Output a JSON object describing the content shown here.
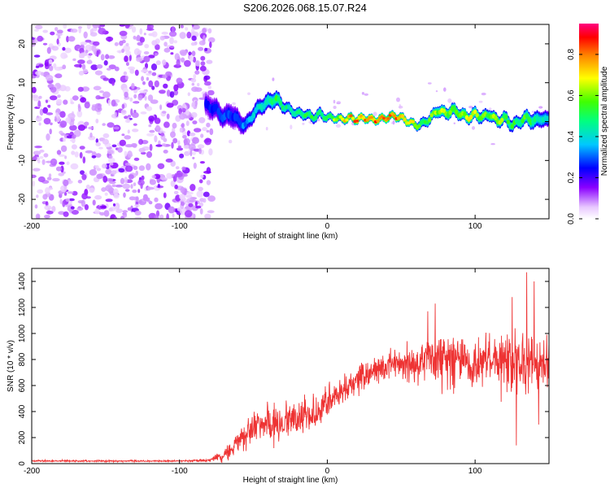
{
  "title": "S206.2026.068.15.07.R24",
  "chart_data": [
    {
      "type": "heatmap",
      "name": "spectrogram",
      "xlabel": "Height of straight line (km)",
      "ylabel": "Frequency (Hz)",
      "xlim": [
        -200,
        150
      ],
      "ylim": [
        -25,
        25
      ],
      "x_ticks": [
        -200,
        -100,
        0,
        100
      ],
      "x_tick_labels": [
        "-200",
        "-100",
        "0",
        "100"
      ],
      "y_ticks": [
        -20,
        -10,
        0,
        10,
        20
      ],
      "y_tick_labels": [
        "-20",
        "-10",
        "0",
        "10",
        "20"
      ],
      "colorbar": {
        "label": "Normalized spectral amplitude",
        "range": [
          0,
          0.95
        ],
        "ticks": [
          0.0,
          0.2,
          0.4,
          0.6,
          0.8
        ],
        "tick_labels": [
          "0.0",
          "0.2",
          "0.4",
          "0.6",
          "0.8"
        ]
      },
      "ridge": {
        "x": [
          -80,
          -75,
          -70,
          -65,
          -60,
          -55,
          -50,
          -45,
          -40,
          -35,
          -30,
          -25,
          -20,
          -15,
          -10,
          -5,
          0,
          5,
          10,
          15,
          20,
          25,
          30,
          35,
          40,
          45,
          50,
          55,
          60,
          65,
          70,
          75,
          80,
          85,
          90,
          95,
          100,
          105,
          110,
          115,
          120,
          125,
          130,
          135,
          140,
          145,
          150
        ],
        "freq": [
          4,
          3,
          1,
          2,
          0,
          -1,
          2,
          4,
          5,
          6,
          4,
          3,
          2,
          2,
          1,
          2,
          1,
          1,
          0.5,
          1,
          0.5,
          1,
          0.5,
          0.5,
          1,
          1.5,
          1,
          0,
          -1,
          -0.5,
          1,
          3,
          2,
          3,
          2,
          1,
          2,
          1,
          2,
          0,
          1,
          -1,
          0,
          1,
          0,
          1,
          0
        ],
        "amplitude": [
          0.25,
          0.3,
          0.3,
          0.3,
          0.3,
          0.35,
          0.4,
          0.45,
          0.5,
          0.55,
          0.5,
          0.5,
          0.55,
          0.55,
          0.55,
          0.5,
          0.6,
          0.65,
          0.7,
          0.8,
          0.85,
          0.8,
          0.9,
          0.85,
          0.8,
          0.85,
          0.8,
          0.75,
          0.7,
          0.55,
          0.6,
          0.65,
          0.65,
          0.65,
          0.65,
          0.7,
          0.65,
          0.6,
          0.6,
          0.65,
          0.6,
          0.55,
          0.55,
          0.6,
          0.5,
          0.45,
          0.4
        ],
        "halfwidth": [
          6,
          5,
          5,
          6,
          5,
          4,
          4,
          4,
          4,
          4,
          3,
          2.5,
          2.5,
          2.5,
          2.5,
          2.5,
          2,
          2,
          2,
          2,
          2,
          2,
          2,
          2,
          2,
          2,
          2,
          2,
          2,
          2.5,
          2.5,
          3,
          3,
          3,
          3,
          3,
          3,
          3,
          3,
          3,
          3,
          3,
          3,
          3.5,
          4,
          4,
          4
        ]
      },
      "noise_region_x": [
        -200,
        -78
      ]
    },
    {
      "type": "line",
      "name": "snr",
      "xlabel": "Height of straight line (km)",
      "ylabel": "SNR (10 * v/v)",
      "xlim": [
        -200,
        150
      ],
      "ylim": [
        0,
        1500
      ],
      "x_ticks": [
        -200,
        -100,
        0,
        100
      ],
      "x_tick_labels": [
        "-200",
        "-100",
        "0",
        "100"
      ],
      "y_ticks": [
        0,
        200,
        400,
        600,
        800,
        1000,
        1200,
        1400
      ],
      "y_tick_labels": [
        "0",
        "200",
        "400",
        "600",
        "800",
        "1000",
        "1200",
        "1400"
      ],
      "color": "#ee3333",
      "envelope": {
        "x": [
          -200,
          -150,
          -100,
          -80,
          -70,
          -60,
          -50,
          -40,
          -30,
          -20,
          -10,
          0,
          10,
          20,
          30,
          40,
          50,
          60,
          70,
          80,
          90,
          100,
          110,
          120,
          130,
          140,
          150
        ],
        "mean": [
          20,
          20,
          20,
          25,
          60,
          180,
          260,
          300,
          320,
          340,
          380,
          460,
          560,
          640,
          700,
          760,
          780,
          760,
          800,
          820,
          800,
          780,
          790,
          770,
          780,
          760,
          760
        ],
        "spread": [
          8,
          8,
          8,
          15,
          60,
          120,
          160,
          180,
          170,
          170,
          160,
          150,
          140,
          150,
          140,
          140,
          150,
          170,
          220,
          260,
          230,
          230,
          240,
          260,
          300,
          280,
          240
        ]
      },
      "peaks": [
        {
          "x": 68,
          "y": 1170
        },
        {
          "x": 73,
          "y": 1230
        },
        {
          "x": 135,
          "y": 1470
        },
        {
          "x": 140,
          "y": 1400
        },
        {
          "x": 125,
          "y": 1280
        },
        {
          "x": 128,
          "y": 140
        },
        {
          "x": 143,
          "y": 300
        }
      ]
    }
  ]
}
